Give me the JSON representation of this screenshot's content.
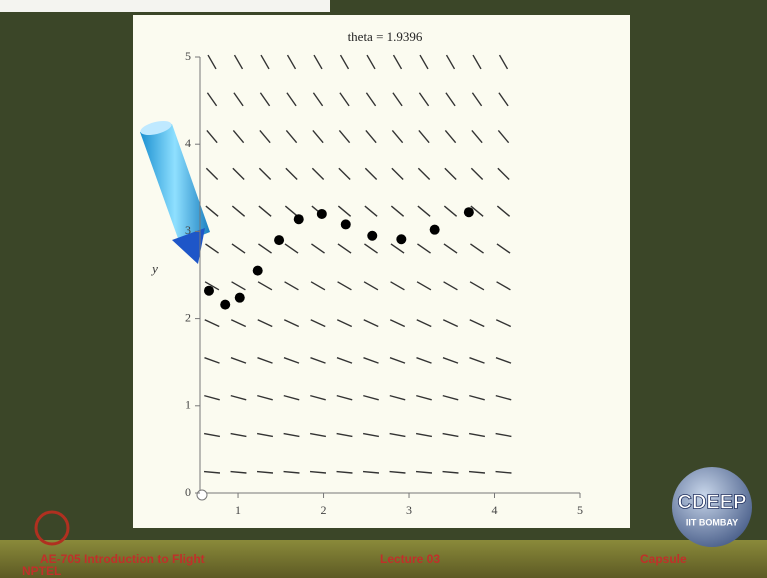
{
  "chart_data": {
    "type": "scatter",
    "title": "theta = 1.9396",
    "y_label": "y",
    "color": "#000000",
    "x": [
      0.66,
      0.85,
      1.02,
      1.23,
      1.48,
      1.71,
      1.98,
      2.26,
      2.57,
      2.91,
      3.3,
      3.7
    ],
    "values": [
      2.32,
      2.16,
      2.24,
      2.55,
      2.9,
      3.14,
      3.2,
      3.08,
      2.95,
      2.91,
      3.02,
      3.22
    ],
    "xlim": [
      0.555,
      5
    ],
    "ylim": [
      0,
      5
    ],
    "xticks": [
      1,
      2,
      3,
      4,
      5
    ],
    "yticks": [
      0,
      1,
      2,
      3,
      4,
      5
    ]
  },
  "footer": {
    "course": "AE-705 Introduction to Flight",
    "lecture": "Lecture 03",
    "section": "Capsule",
    "logo": "CDEEP",
    "institute": "IIT BOMBAY",
    "brand": "NPTEL"
  }
}
